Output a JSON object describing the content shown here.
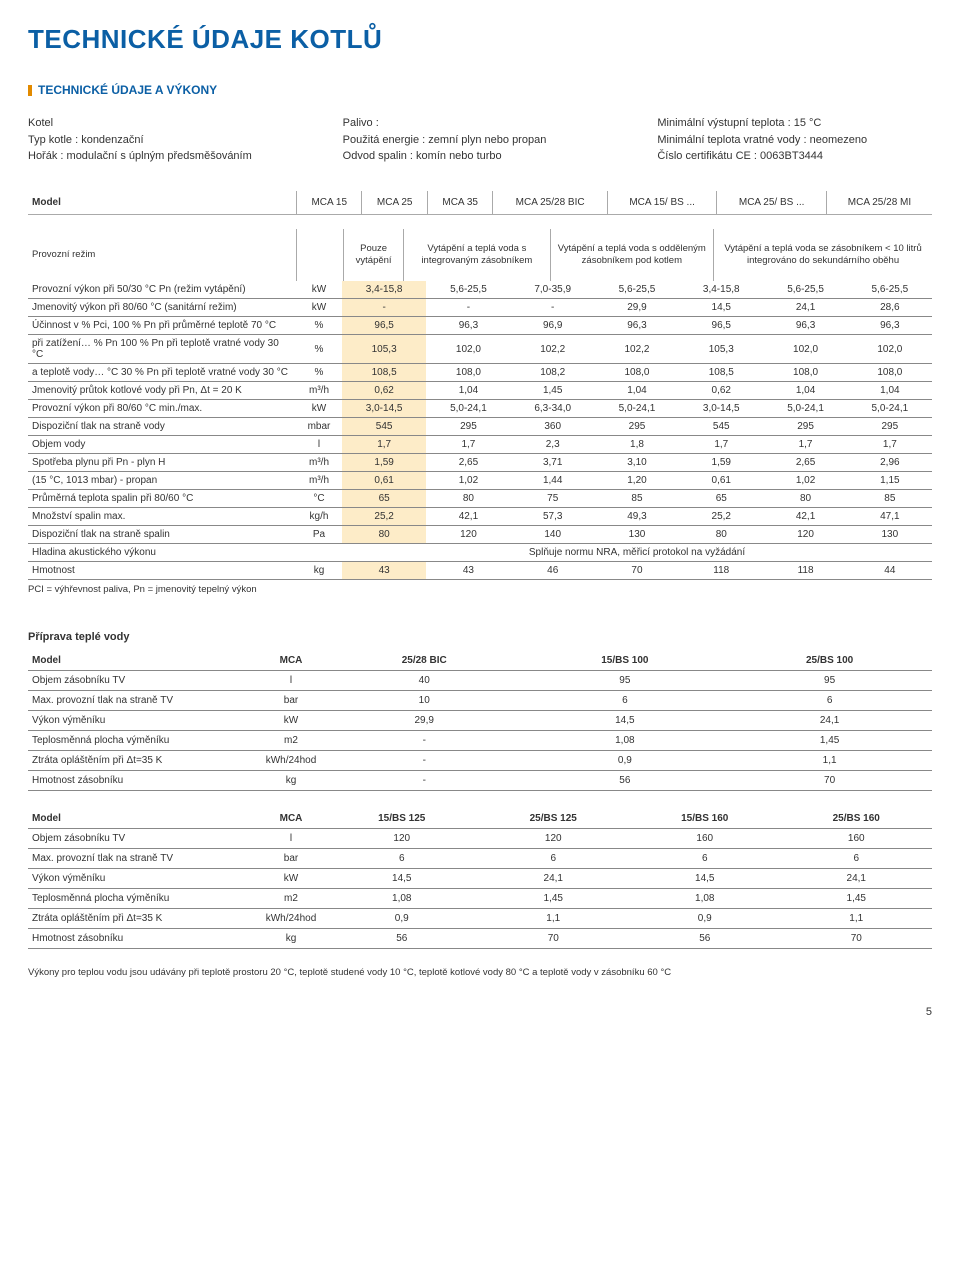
{
  "title": "TECHNICKÉ ÚDAJE KOTLŮ",
  "section": "TECHNICKÉ ÚDAJE A VÝKONY",
  "intro": {
    "col1": [
      {
        "l": "Kotel",
        "v": ""
      },
      {
        "l": "Typ kotle :",
        "v": " kondenzační"
      },
      {
        "l": "Hořák :",
        "v": " modulační s úplným předsměšováním"
      }
    ],
    "col2": [
      {
        "l": "Palivo :",
        "v": ""
      },
      {
        "l": "Použitá energie :",
        "v": " zemní plyn nebo propan"
      },
      {
        "l": "Odvod spalin :",
        "v": " komín nebo turbo"
      }
    ],
    "col3": [
      {
        "l": "Minimální výstupní teplota :",
        "v": " 15 °C"
      },
      {
        "l": "Minimální teplota vratné vody :",
        "v": " neomezeno"
      },
      {
        "l": "Číslo certifikátu CE :",
        "v": " 0063BT3444"
      }
    ]
  },
  "models": {
    "label": "Model",
    "cols": [
      "MCA 15",
      "MCA 25",
      "MCA 35",
      "MCA 25/28 BIC",
      "MCA 15/ BS ...",
      "MCA 25/ BS ...",
      "MCA 25/28 MI"
    ]
  },
  "regime": {
    "label": "Provozní režim",
    "c1": "Pouze vytápění",
    "c2": "Vytápění a teplá voda s integrovaným zásobníkem",
    "c3": "Vytápění a teplá voda s odděleným zásobníkem pod kotlem",
    "c4": "Vytápění a teplá voda se zásobníkem < 10 litrů integrováno do sekundárního oběhu"
  },
  "rows": [
    {
      "l": "Provozní výkon při 50/30 °C Pn (režim vytápění)",
      "u": "kW",
      "v": [
        "3,4-15,8",
        "5,6-25,5",
        "7,0-35,9",
        "5,6-25,5",
        "3,4-15,8",
        "5,6-25,5",
        "5,6-25,5"
      ]
    },
    {
      "l": "Jmenovitý výkon při 80/60 °C (sanitární režim)",
      "u": "kW",
      "v": [
        "-",
        "-",
        "-",
        "29,9",
        "14,5",
        "24,1",
        "28,6"
      ]
    },
    {
      "l": "Účinnost v % Pci,        100 % Pn při průměrné teplotě 70 °C",
      "u": "%",
      "v": [
        "96,5",
        "96,3",
        "96,9",
        "96,3",
        "96,5",
        "96,3",
        "96,3"
      ]
    },
    {
      "l": "při zatížení… % Pn      100 % Pn při teplotě vratné vody 30 °C",
      "u": "%",
      "v": [
        "105,3",
        "102,0",
        "102,2",
        "102,2",
        "105,3",
        "102,0",
        "102,0"
      ]
    },
    {
      "l": "a teplotě vody… °C      30 % Pn při teplotě vratné vody 30 °C",
      "u": "%",
      "v": [
        "108,5",
        "108,0",
        "108,2",
        "108,0",
        "108,5",
        "108,0",
        "108,0"
      ]
    },
    {
      "l": "Jmenovitý průtok kotlové vody při Pn, Δt = 20 K",
      "u": "m³/h",
      "v": [
        "0,62",
        "1,04",
        "1,45",
        "1,04",
        "0,62",
        "1,04",
        "1,04"
      ]
    },
    {
      "l": "Provozní výkon při 80/60 °C min./max.",
      "u": "kW",
      "v": [
        "3,0-14,5",
        "5,0-24,1",
        "6,3-34,0",
        "5,0-24,1",
        "3,0-14,5",
        "5,0-24,1",
        "5,0-24,1"
      ]
    },
    {
      "l": "Dispoziční tlak na straně vody",
      "u": "mbar",
      "v": [
        "545",
        "295",
        "360",
        "295",
        "545",
        "295",
        "295"
      ]
    },
    {
      "l": "Objem vody",
      "u": "l",
      "v": [
        "1,7",
        "1,7",
        "2,3",
        "1,8",
        "1,7",
        "1,7",
        "1,7"
      ]
    },
    {
      "l": "Spotřeba plynu při Pn   - plyn H",
      "u": "m³/h",
      "v": [
        "1,59",
        "2,65",
        "3,71",
        "3,10",
        "1,59",
        "2,65",
        "2,96"
      ]
    },
    {
      "l": "(15 °C, 1013 mbar)        - propan",
      "u": "m³/h",
      "v": [
        "0,61",
        "1,02",
        "1,44",
        "1,20",
        "0,61",
        "1,02",
        "1,15"
      ]
    },
    {
      "l": "Průměrná teplota spalin při 80/60 °C",
      "u": "°C",
      "v": [
        "65",
        "80",
        "75",
        "85",
        "65",
        "80",
        "85"
      ]
    },
    {
      "l": "Množství spalin max.",
      "u": "kg/h",
      "v": [
        "25,2",
        "42,1",
        "57,3",
        "49,3",
        "25,2",
        "42,1",
        "47,1"
      ]
    },
    {
      "l": "Dispoziční tlak na straně spalin",
      "u": "Pa",
      "v": [
        "80",
        "120",
        "140",
        "130",
        "80",
        "120",
        "130"
      ]
    },
    {
      "l": "Hladina akustického výkonu",
      "u": "",
      "span": "Splňuje normu NRA, měřicí protokol na vyžádání"
    },
    {
      "l": "Hmotnost",
      "u": "kg",
      "v": [
        "43",
        "43",
        "46",
        "70",
        "118",
        "118",
        "44"
      ]
    }
  ],
  "foot": "PCI = výhřevnost paliva, Pn = jmenovitý tepelný výkon",
  "tv_head": "Příprava teplé vody",
  "tv1": {
    "cols": [
      "Model",
      "MCA",
      "25/28 BIC",
      "15/BS 100",
      "25/BS 100"
    ],
    "rows": [
      {
        "l": "Objem zásobníku TV",
        "u": "l",
        "v": [
          "40",
          "95",
          "95"
        ]
      },
      {
        "l": "Max. provozní tlak na straně TV",
        "u": "bar",
        "v": [
          "10",
          "6",
          "6"
        ]
      },
      {
        "l": "Výkon výměníku",
        "u": "kW",
        "v": [
          "29,9",
          "14,5",
          "24,1"
        ]
      },
      {
        "l": "Teplosměnná plocha výměníku",
        "u": "m2",
        "v": [
          "-",
          "1,08",
          "1,45"
        ]
      },
      {
        "l": "Ztráta opláštěním při Δt=35 K",
        "u": "kWh/24hod",
        "v": [
          "-",
          "0,9",
          "1,1"
        ]
      },
      {
        "l": "Hmotnost zásobníku",
        "u": "kg",
        "v": [
          "-",
          "56",
          "70"
        ]
      }
    ]
  },
  "tv2": {
    "cols": [
      "Model",
      "MCA",
      "15/BS 125",
      "25/BS 125",
      "15/BS 160",
      "25/BS 160"
    ],
    "rows": [
      {
        "l": "Objem zásobníku TV",
        "u": "l",
        "v": [
          "120",
          "120",
          "160",
          "160"
        ]
      },
      {
        "l": "Max. provozní tlak na straně TV",
        "u": "bar",
        "v": [
          "6",
          "6",
          "6",
          "6"
        ]
      },
      {
        "l": "Výkon výměníku",
        "u": "kW",
        "v": [
          "14,5",
          "24,1",
          "14,5",
          "24,1"
        ]
      },
      {
        "l": "Teplosměnná plocha výměníku",
        "u": "m2",
        "v": [
          "1,08",
          "1,45",
          "1,08",
          "1,45"
        ]
      },
      {
        "l": "Ztráta opláštěním při Δt=35 K",
        "u": "kWh/24hod",
        "v": [
          "0,9",
          "1,1",
          "0,9",
          "1,1"
        ]
      },
      {
        "l": "Hmotnost zásobníku",
        "u": "kg",
        "v": [
          "56",
          "70",
          "56",
          "70"
        ]
      }
    ]
  },
  "tv_foot": "Výkony pro teplou vodu jsou udávány při teplotě prostoru 20 °C, teplotě studené vody 10 °C, teplotě kotlové vody 80 °C a teplotě vody v zásobníku 60 °C",
  "page": "5",
  "colors": {
    "accent": "#0b5fa5",
    "highlight": "#fdecc8",
    "bar": "#e28a00",
    "line": "#888"
  }
}
